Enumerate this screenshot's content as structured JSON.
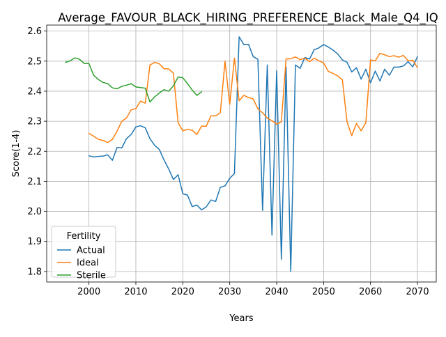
{
  "chart_data": {
    "type": "line",
    "title": "Average_FAVOUR_BLACK_HIRING_PREFERENCE_Black_Male_Q4_IQ",
    "xlabel": "Years",
    "ylabel": "Score(1-4)",
    "xlim": [
      1991,
      2074
    ],
    "ylim": [
      1.765,
      2.62
    ],
    "xticks": [
      2000,
      2010,
      2020,
      2030,
      2040,
      2050,
      2060,
      2070
    ],
    "yticks": [
      1.8,
      1.9,
      2.0,
      2.1,
      2.2,
      2.3,
      2.4,
      2.5,
      2.6
    ],
    "grid": true,
    "legend": {
      "title": "Fertility",
      "placement": "lower-left"
    },
    "series": [
      {
        "name": "Actual",
        "color": "#1f77b4",
        "x": [
          2000,
          2001,
          2002,
          2003,
          2004,
          2005,
          2006,
          2007,
          2008,
          2009,
          2010,
          2011,
          2012,
          2013,
          2014,
          2015,
          2016,
          2017,
          2018,
          2019,
          2020,
          2021,
          2022,
          2023,
          2024,
          2025,
          2026,
          2027,
          2028,
          2029,
          2030,
          2031,
          2032,
          2033,
          2034,
          2035,
          2036,
          2037,
          2038,
          2039,
          2040,
          2041,
          2042,
          2043,
          2044,
          2045,
          2046,
          2047,
          2048,
          2049,
          2050,
          2051,
          2052,
          2053,
          2054,
          2055,
          2056,
          2057,
          2058,
          2059,
          2060,
          2061,
          2062,
          2063,
          2064,
          2065,
          2066,
          2067,
          2068,
          2069,
          2070
        ],
        "values": [
          2.185,
          2.181,
          2.183,
          2.184,
          2.188,
          2.17,
          2.213,
          2.211,
          2.242,
          2.256,
          2.281,
          2.285,
          2.278,
          2.242,
          2.22,
          2.206,
          2.171,
          2.141,
          2.106,
          2.122,
          2.059,
          2.054,
          2.016,
          2.021,
          2.005,
          2.015,
          2.038,
          2.033,
          2.08,
          2.085,
          2.11,
          2.126,
          2.581,
          2.555,
          2.556,
          2.515,
          2.506,
          2.003,
          2.487,
          1.921,
          2.468,
          1.841,
          2.481,
          1.8,
          2.487,
          2.476,
          2.512,
          2.507,
          2.538,
          2.544,
          2.555,
          2.547,
          2.537,
          2.524,
          2.504,
          2.496,
          2.464,
          2.478,
          2.44,
          2.473,
          2.428,
          2.467,
          2.434,
          2.473,
          2.453,
          2.48,
          2.48,
          2.484,
          2.498,
          2.481,
          2.515
        ]
      },
      {
        "name": "Ideal",
        "color": "#ff7f0e",
        "x": [
          2000,
          2001,
          2002,
          2003,
          2004,
          2005,
          2006,
          2007,
          2008,
          2009,
          2010,
          2011,
          2012,
          2013,
          2014,
          2015,
          2016,
          2017,
          2018,
          2019,
          2020,
          2021,
          2022,
          2023,
          2024,
          2025,
          2026,
          2027,
          2028,
          2029,
          2030,
          2031,
          2032,
          2033,
          2034,
          2035,
          2036,
          2037,
          2038,
          2039,
          2040,
          2041,
          2042,
          2043,
          2044,
          2045,
          2046,
          2047,
          2048,
          2049,
          2050,
          2051,
          2052,
          2053,
          2054,
          2055,
          2056,
          2057,
          2058,
          2059,
          2060,
          2061,
          2062,
          2063,
          2064,
          2065,
          2066,
          2067,
          2068,
          2069,
          2070
        ],
        "values": [
          2.26,
          2.25,
          2.24,
          2.236,
          2.229,
          2.24,
          2.267,
          2.3,
          2.311,
          2.338,
          2.342,
          2.367,
          2.36,
          2.487,
          2.496,
          2.491,
          2.475,
          2.474,
          2.46,
          2.295,
          2.268,
          2.273,
          2.27,
          2.256,
          2.284,
          2.283,
          2.318,
          2.318,
          2.328,
          2.5,
          2.356,
          2.51,
          2.368,
          2.386,
          2.379,
          2.374,
          2.341,
          2.328,
          2.31,
          2.302,
          2.29,
          2.298,
          2.507,
          2.508,
          2.514,
          2.505,
          2.51,
          2.498,
          2.51,
          2.501,
          2.494,
          2.466,
          2.459,
          2.451,
          2.438,
          2.297,
          2.252,
          2.293,
          2.268,
          2.295,
          2.504,
          2.501,
          2.526,
          2.521,
          2.515,
          2.518,
          2.513,
          2.519,
          2.501,
          2.503,
          2.478
        ]
      },
      {
        "name": "Sterile",
        "color": "#2ca02c",
        "x": [
          1995,
          1996,
          1997,
          1998,
          1999,
          2000,
          2001,
          2002,
          2003,
          2004,
          2005,
          2006,
          2007,
          2008,
          2009,
          2010,
          2011,
          2012,
          2013,
          2014,
          2015,
          2016,
          2017,
          2018,
          2019,
          2020,
          2021,
          2022,
          2023,
          2024
        ],
        "values": [
          2.496,
          2.501,
          2.511,
          2.506,
          2.492,
          2.492,
          2.453,
          2.439,
          2.429,
          2.425,
          2.411,
          2.408,
          2.416,
          2.42,
          2.425,
          2.414,
          2.412,
          2.41,
          2.364,
          2.381,
          2.394,
          2.405,
          2.4,
          2.418,
          2.447,
          2.445,
          2.425,
          2.404,
          2.386,
          2.398
        ]
      }
    ]
  }
}
